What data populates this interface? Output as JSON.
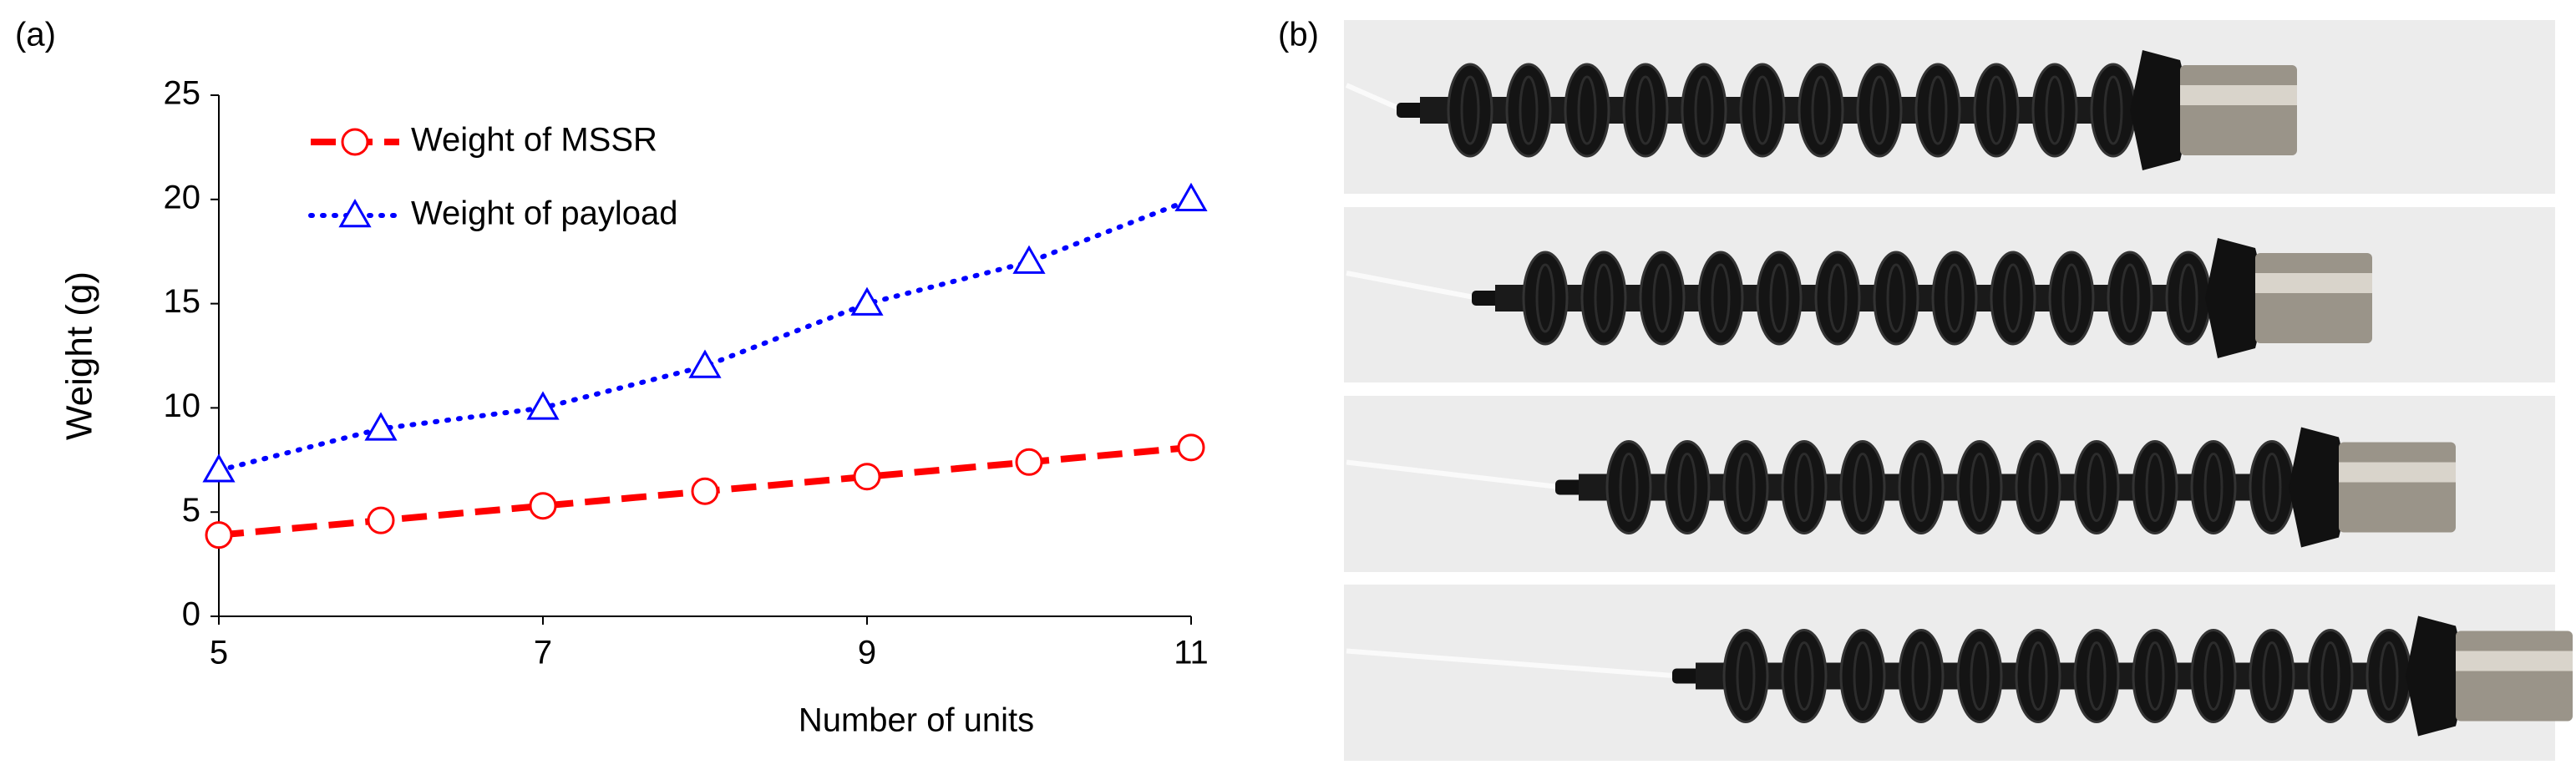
{
  "chart_data": {
    "type": "line",
    "panel_label": "(a)",
    "x_label": "Number of units",
    "y_label": "Weight (g)",
    "x": [
      5,
      6,
      7,
      8,
      9,
      10,
      11
    ],
    "series": [
      {
        "name": "Weight of MSSR",
        "color": "#ff0000",
        "line_style": "dashed",
        "marker": "circle",
        "values": [
          3.9,
          4.6,
          5.3,
          6.0,
          6.7,
          7.4,
          8.1
        ]
      },
      {
        "name": "Weight of payload",
        "color": "#0000ff",
        "line_style": "dotted",
        "marker": "triangle",
        "values": [
          7,
          9,
          10,
          12,
          15,
          17,
          20
        ]
      }
    ],
    "xlim": [
      5,
      11
    ],
    "xticks": [
      5,
      7,
      9,
      11
    ],
    "ylim": [
      0,
      25
    ],
    "yticks": [
      0,
      5,
      10,
      15,
      20,
      25
    ],
    "legend": "upper left"
  },
  "photo_panel": {
    "label": "(b)"
  }
}
